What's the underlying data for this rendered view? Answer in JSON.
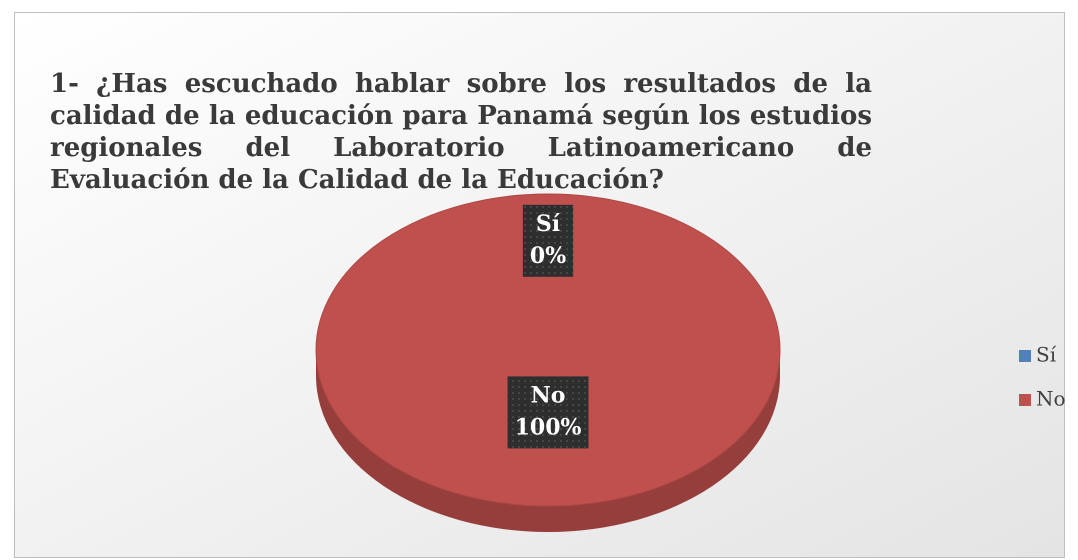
{
  "chart_data": {
    "type": "pie3d",
    "title": "1- ¿Has escuchado hablar sobre los resultados de la calidad de la educación para Panamá según los estudios regionales del Laboratorio Latinoamericano de Evaluación de la Calidad de  la Educación?",
    "categories": [
      "Sí",
      "No"
    ],
    "values": [
      0,
      100
    ],
    "value_labels": [
      "0%",
      "100%"
    ],
    "colors": [
      "#4f81bd",
      "#c0504d"
    ],
    "legend": "right"
  }
}
